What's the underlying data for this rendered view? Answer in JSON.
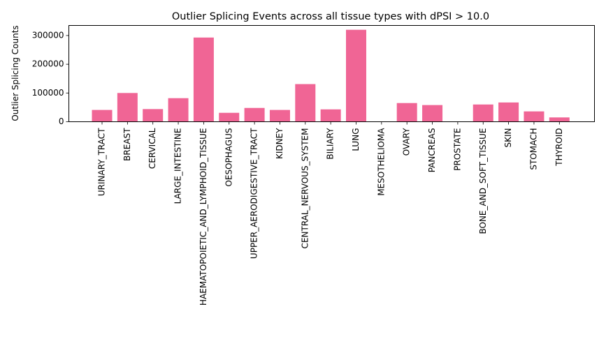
{
  "chart_data": {
    "type": "bar",
    "title": "Outlier Splicing Events across all tissue types with dPSI > 10.0",
    "xlabel": "",
    "ylabel": "Outlier Splicing Counts",
    "ylim": [
      0,
      335000
    ],
    "yticks": [
      0,
      100000,
      200000,
      300000
    ],
    "ytick_labels": [
      "0",
      "100000",
      "200000",
      "300000"
    ],
    "grid": false,
    "bar_color": "#f06595",
    "categories": [
      "URINARY_TRACT",
      "BREAST",
      "CERVICAL",
      "LARGE_INTESTINE",
      "HAEMATOPOIETIC_AND_LYMPHOID_TISSUE",
      "OESOPHAGUS",
      "UPPER_AERODIGESTIVE_TRACT",
      "KIDNEY",
      "CENTRAL_NERVOUS_SYSTEM",
      "BILIARY",
      "LUNG",
      "MESOTHELIOMA",
      "OVARY",
      "PANCREAS",
      "PROSTATE",
      "BONE_AND_SOFT_TISSUE",
      "SKIN",
      "STOMACH",
      "THYROID"
    ],
    "values": [
      41000,
      100000,
      44000,
      82000,
      293000,
      31000,
      48000,
      41000,
      131000,
      43000,
      320000,
      0,
      65000,
      58000,
      0,
      60000,
      67000,
      36000,
      15000
    ]
  }
}
